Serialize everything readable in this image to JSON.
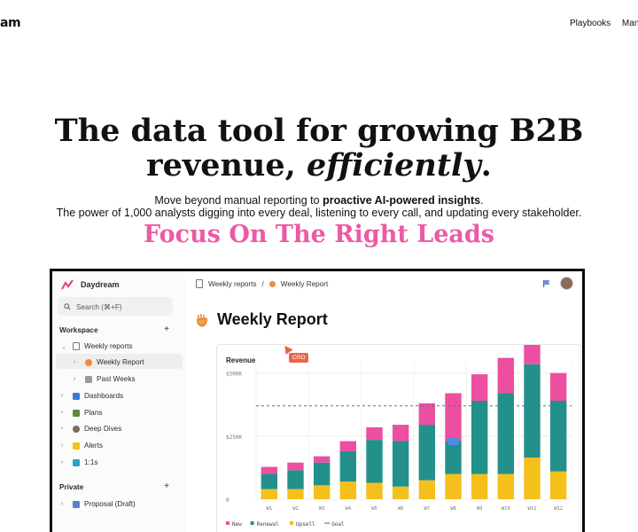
{
  "brand_partial": "am",
  "nav": {
    "items": [
      "Playbooks",
      "Mani"
    ]
  },
  "hero": {
    "title_line1": "The data tool for growing B2B",
    "title_line2_plain": "revenue, ",
    "title_line2_emph": "efficiently",
    "title_line2_end": ".",
    "sub1_plain": "Move beyond manual reporting to ",
    "sub1_bold": "proactive AI-powered insights",
    "sub1_end": ".",
    "sub2": "The power of 1,000 analysts digging into every deal, listening to every call, and updating every stakeholder.",
    "tagline": "Focus On The Right Leads"
  },
  "app": {
    "brand": "Daydream",
    "search_placeholder": "Search (⌘+F)",
    "workspace_label": "Workspace",
    "private_label": "Private",
    "add_icon": "+",
    "items": {
      "weekly_reports": "Weekly reports",
      "weekly_report": "Weekly Report",
      "past_weeks": "Past Weeks",
      "dashboards": "Dashboards",
      "plans": "Plans",
      "deep_dives": "Deep Dives",
      "alerts": "Alerts",
      "one_on_ones": "1:1s",
      "proposal": "Proposal (Draft)"
    },
    "breadcrumb": {
      "parent": "Weekly reports",
      "separator": "/",
      "current": "Weekly Report"
    },
    "page_title": "Weekly Report",
    "cursor_badge": "CRO",
    "colors": {
      "new": "#ec4fa0",
      "renewal": "#23908c",
      "upsell": "#f5bf1c",
      "goal": "#2d8a84"
    }
  },
  "chart_data": {
    "type": "bar",
    "stacked": true,
    "title": "Revenue",
    "categories": [
      "W1",
      "W2",
      "W3",
      "W4",
      "W5",
      "W6",
      "W7",
      "W8",
      "W9",
      "W10",
      "W11",
      "W12"
    ],
    "series": [
      {
        "name": "Upsell",
        "values": [
          40,
          40,
          55,
          70,
          65,
          50,
          75,
          100,
          100,
          100,
          165,
          110
        ]
      },
      {
        "name": "Renewal",
        "values": [
          60,
          75,
          90,
          120,
          170,
          180,
          220,
          130,
          290,
          320,
          370,
          280
        ]
      },
      {
        "name": "New",
        "values": [
          28,
          30,
          25,
          40,
          50,
          65,
          85,
          190,
          105,
          140,
          100,
          110
        ]
      }
    ],
    "goal": 370,
    "goal_label": "Goal",
    "yticks": [
      {
        "v": 0,
        "label": "0"
      },
      {
        "v": 250,
        "label": "$250K"
      },
      {
        "v": 500,
        "label": "$500K"
      }
    ],
    "ylim": [
      0,
      520
    ],
    "grid": true,
    "legend_position": "bottom-left"
  }
}
